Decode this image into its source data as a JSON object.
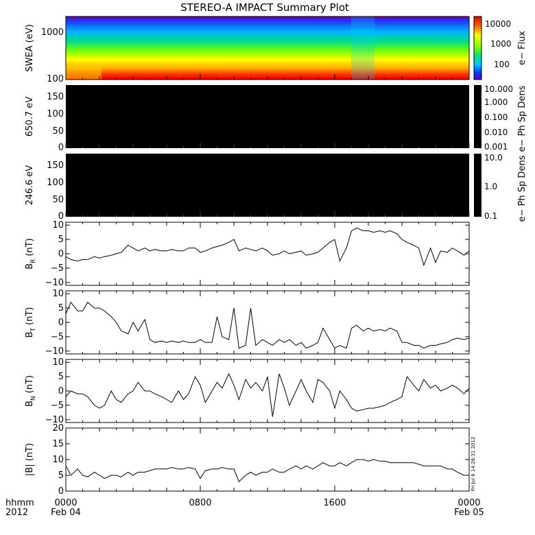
{
  "title": "STEREO-A IMPACT Summary Plot",
  "footer": {
    "hhmm": "hhmm",
    "year": "2012",
    "ticks": [
      "0000",
      "0800",
      "1600",
      "0000"
    ],
    "dates": [
      "Feb 04",
      "",
      "",
      "Feb 05"
    ]
  },
  "timestamp": "Fri Jul 6 14:28:31 2012",
  "chart_data": [
    {
      "type": "heatmap",
      "ylabel": "SWEA (eV)",
      "yticks": [
        "1000",
        "100"
      ],
      "colorbar_label": "e− Flux",
      "colorbar_ticks": [
        "10000",
        "1000",
        "100"
      ],
      "colorscale": [
        "#6400b4",
        "#0032ff",
        "#00c8ff",
        "#00e070",
        "#7cff00",
        "#ffff00",
        "#ffaa00",
        "#ff3000",
        "#e00000"
      ]
    },
    {
      "type": "heatmap",
      "ylabel": "650.7 eV",
      "yticks": [
        "150",
        "100",
        "50",
        "0"
      ],
      "colorbar_label": "e− Ph Sp Dens",
      "colorbar_ticks": [
        "10.000",
        "1.000",
        "0.100",
        "0.010",
        "0.001"
      ]
    },
    {
      "type": "heatmap",
      "ylabel": "246.6 eV",
      "yticks": [
        "150",
        "100",
        "50",
        "0"
      ],
      "colorbar_label": "e− Ph Sp Dens",
      "colorbar_ticks": [
        "10.0",
        "1.0",
        "0.1"
      ]
    },
    {
      "type": "line",
      "ylabel": "B",
      "ysub": "R",
      "yunit": "(nT)",
      "yticks": [
        "10",
        "5",
        "0",
        "−5",
        "−10"
      ],
      "ylim": [
        -11,
        11
      ],
      "x": [
        0.0,
        0.3,
        0.7,
        1.0,
        1.3,
        1.7,
        2.0,
        2.3,
        2.7,
        3.0,
        3.3,
        3.7,
        4.0,
        4.3,
        4.7,
        5.0,
        5.3,
        5.7,
        6.0,
        6.3,
        6.7,
        7.0,
        7.3,
        7.7,
        8.0,
        8.3,
        8.7,
        9.0,
        9.3,
        9.7,
        10.0,
        10.3,
        10.7,
        11.0,
        11.3,
        11.7,
        12.0,
        12.3,
        12.7,
        13.0,
        13.3,
        13.7,
        14.0,
        14.3,
        14.7,
        15.0,
        15.3,
        15.7,
        16.0,
        16.3,
        16.7,
        17.0,
        17.3,
        17.7,
        18.0,
        18.3,
        18.7,
        19.0,
        19.3,
        19.7,
        20.0,
        20.3,
        20.7,
        21.0,
        21.3,
        21.7,
        22.0,
        22.3,
        22.7,
        23.0,
        23.3,
        23.7,
        24.0
      ],
      "values": [
        -1,
        -2,
        -2.5,
        -2,
        -2,
        -1,
        -1.5,
        -1,
        -0.5,
        0,
        0.5,
        3,
        2,
        1,
        2,
        1,
        1.5,
        1,
        1,
        1.5,
        1,
        1,
        2,
        2,
        0.5,
        1,
        2,
        2.5,
        3,
        4,
        5,
        1,
        2,
        1.5,
        1,
        2,
        1,
        -0.5,
        0,
        1,
        0,
        0.5,
        1,
        -0.5,
        0,
        0.5,
        2,
        4,
        5,
        -2.5,
        2,
        8,
        9,
        8,
        8,
        7.5,
        8,
        7.5,
        8,
        7,
        5,
        4,
        3,
        2,
        -4,
        2,
        -3,
        1,
        0.5,
        2,
        1,
        -0.5,
        1
      ]
    },
    {
      "type": "line",
      "ylabel": "B",
      "ysub": "T",
      "yunit": "(nT)",
      "yticks": [
        "10",
        "5",
        "0",
        "−5",
        "−10"
      ],
      "ylim": [
        -11,
        11
      ],
      "x": [
        0.0,
        0.3,
        0.7,
        1.0,
        1.3,
        1.7,
        2.0,
        2.3,
        2.7,
        3.0,
        3.3,
        3.7,
        4.0,
        4.3,
        4.7,
        5.0,
        5.3,
        5.7,
        6.0,
        6.3,
        6.7,
        7.0,
        7.3,
        7.7,
        8.0,
        8.3,
        8.7,
        9.0,
        9.3,
        9.7,
        10.0,
        10.3,
        10.7,
        11.0,
        11.3,
        11.7,
        12.0,
        12.3,
        12.7,
        13.0,
        13.3,
        13.7,
        14.0,
        14.3,
        14.7,
        15.0,
        15.3,
        15.7,
        16.0,
        16.3,
        16.7,
        17.0,
        17.3,
        17.7,
        18.0,
        18.3,
        18.7,
        19.0,
        19.3,
        19.7,
        20.0,
        20.3,
        20.7,
        21.0,
        21.3,
        21.7,
        22.0,
        22.3,
        22.7,
        23.0,
        23.3,
        23.7,
        24.0
      ],
      "values": [
        3,
        7,
        4,
        4,
        7,
        5,
        5,
        4,
        2,
        0,
        -3,
        -4,
        0,
        -3,
        1,
        -6,
        -7,
        -6.5,
        -7,
        -6.5,
        -7,
        -6.5,
        -7,
        -7,
        -6,
        -7,
        -7,
        2,
        -5,
        -6,
        5,
        -9,
        -8,
        5,
        -8,
        -6,
        -7,
        -8,
        -6,
        -7,
        -6,
        -8,
        -7,
        -9,
        -8,
        -7,
        -2,
        -6,
        -9,
        -8,
        -9,
        -2,
        -1,
        -3,
        -2,
        -3,
        -2.5,
        -3,
        -2,
        -3,
        -7,
        -7,
        -8,
        -8,
        -9,
        -8,
        -8,
        -7.5,
        -7,
        -6,
        -5.5,
        -6,
        -5.5
      ]
    },
    {
      "type": "line",
      "ylabel": "B",
      "ysub": "N",
      "yunit": "(nT)",
      "yticks": [
        "10",
        "5",
        "0",
        "−5",
        "−10"
      ],
      "ylim": [
        -11,
        11
      ],
      "x": [
        0.0,
        0.3,
        0.7,
        1.0,
        1.3,
        1.7,
        2.0,
        2.3,
        2.7,
        3.0,
        3.3,
        3.7,
        4.0,
        4.3,
        4.7,
        5.0,
        5.3,
        5.7,
        6.0,
        6.3,
        6.7,
        7.0,
        7.3,
        7.7,
        8.0,
        8.3,
        8.7,
        9.0,
        9.3,
        9.7,
        10.0,
        10.3,
        10.7,
        11.0,
        11.3,
        11.7,
        12.0,
        12.3,
        12.7,
        13.0,
        13.3,
        13.7,
        14.0,
        14.3,
        14.7,
        15.0,
        15.3,
        15.7,
        16.0,
        16.3,
        16.7,
        17.0,
        17.3,
        17.7,
        18.0,
        18.3,
        18.7,
        19.0,
        19.3,
        19.7,
        20.0,
        20.3,
        20.7,
        21.0,
        21.3,
        21.7,
        22.0,
        22.3,
        22.7,
        23.0,
        23.3,
        23.7,
        24.0
      ],
      "values": [
        -2,
        0,
        -1,
        -1,
        -2,
        -5,
        -6,
        -5,
        0,
        -3,
        -4,
        -1,
        0,
        3,
        0,
        0,
        -1,
        -2,
        -3,
        -4,
        0,
        -3,
        -1,
        5,
        2,
        -4,
        0,
        3,
        1,
        6,
        2,
        -3,
        4,
        1,
        3,
        0,
        5,
        -9,
        6,
        1,
        -5,
        0,
        4,
        0,
        -4,
        4,
        3,
        0,
        -6,
        0,
        -3,
        -6,
        -7,
        -6.5,
        -6,
        -6,
        -5.5,
        -5,
        -4,
        -3,
        -2,
        5,
        2,
        0,
        4,
        1,
        2,
        0,
        1,
        2,
        1,
        -1,
        1
      ]
    },
    {
      "type": "line",
      "ylabel": "|B| (nT)",
      "yticks": [
        "20",
        "15",
        "10",
        "5",
        "0"
      ],
      "ylim": [
        0,
        20
      ],
      "x": [
        0.0,
        0.3,
        0.7,
        1.0,
        1.3,
        1.7,
        2.0,
        2.3,
        2.7,
        3.0,
        3.3,
        3.7,
        4.0,
        4.3,
        4.7,
        5.0,
        5.3,
        5.7,
        6.0,
        6.3,
        6.7,
        7.0,
        7.3,
        7.7,
        8.0,
        8.3,
        8.7,
        9.0,
        9.3,
        9.7,
        10.0,
        10.3,
        10.7,
        11.0,
        11.3,
        11.7,
        12.0,
        12.3,
        12.7,
        13.0,
        13.3,
        13.7,
        14.0,
        14.3,
        14.7,
        15.0,
        15.3,
        15.7,
        16.0,
        16.3,
        16.7,
        17.0,
        17.3,
        17.7,
        18.0,
        18.3,
        18.7,
        19.0,
        19.3,
        19.7,
        20.0,
        20.3,
        20.7,
        21.0,
        21.3,
        21.7,
        22.0,
        22.3,
        22.7,
        23.0,
        23.3,
        23.7,
        24.0
      ],
      "values": [
        8,
        5,
        7,
        5,
        4.5,
        6,
        5,
        4,
        5,
        5,
        4.5,
        6,
        5,
        6,
        6,
        6.5,
        7,
        7,
        7,
        7.5,
        7,
        7,
        7.5,
        7,
        4,
        6.5,
        7,
        7,
        7.5,
        7,
        7,
        3,
        5,
        6,
        5,
        6,
        6,
        7,
        6,
        6,
        7,
        8,
        7,
        8,
        7,
        8,
        9,
        8,
        8,
        9,
        8,
        9,
        10,
        10,
        9.5,
        10,
        9.5,
        9.5,
        9,
        9,
        9,
        9,
        9,
        8.5,
        8,
        8,
        8,
        8,
        7,
        7,
        6,
        5,
        5
      ]
    }
  ]
}
